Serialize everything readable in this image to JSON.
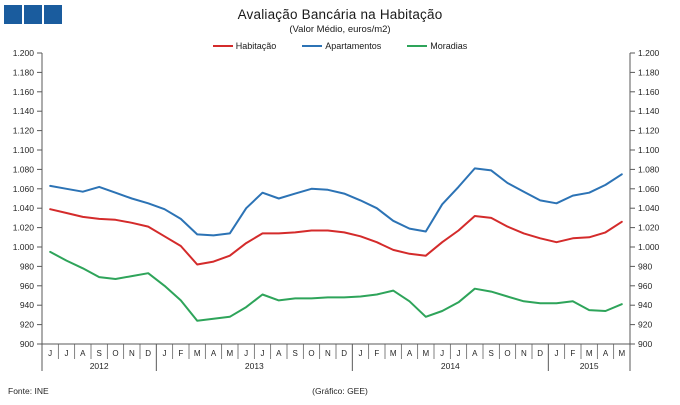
{
  "logo": {
    "square_color": "#1a5c9e",
    "square_count": 3
  },
  "title": "Avaliação Bancária na Habitação",
  "subtitle": "(Valor Médio, euros/m2)",
  "footer": {
    "source": "Fonte:  INE",
    "credit": "(Gráfico:  GEE)"
  },
  "chart_data": {
    "type": "line",
    "title": "Avaliação Bancária na Habitação",
    "subtitle": "(Valor Médio, euros/m2)",
    "ylim": [
      900,
      1200
    ],
    "ytick_step": 20,
    "ytick_labels": [
      "1.200",
      "1.180",
      "1.160",
      "1.140",
      "1.120",
      "1.100",
      "1.080",
      "1.060",
      "1.040",
      "1.020",
      "1.000",
      "980",
      "960",
      "940",
      "920",
      "900"
    ],
    "grid": false,
    "legend_position": "top-center",
    "dual_y_axis": true,
    "x_months": [
      "J",
      "J",
      "A",
      "S",
      "O",
      "N",
      "D",
      "J",
      "F",
      "M",
      "A",
      "M",
      "J",
      "J",
      "A",
      "S",
      "O",
      "N",
      "D",
      "J",
      "F",
      "M",
      "A",
      "M",
      "J",
      "J",
      "A",
      "S",
      "O",
      "N",
      "D",
      "J",
      "F",
      "M",
      "A",
      "M"
    ],
    "years": [
      {
        "label": "2012",
        "months": 7
      },
      {
        "label": "2013",
        "months": 12
      },
      {
        "label": "2014",
        "months": 12
      },
      {
        "label": "2015",
        "months": 5
      }
    ],
    "series": [
      {
        "name": "Habitação",
        "color": "#d42b2b",
        "values": [
          1039,
          1035,
          1031,
          1029,
          1028,
          1025,
          1021,
          1011,
          1001,
          982,
          985,
          991,
          1004,
          1014,
          1014,
          1015,
          1017,
          1017,
          1015,
          1011,
          1005,
          997,
          993,
          991,
          1005,
          1017,
          1032,
          1030,
          1021,
          1014,
          1009,
          1005,
          1009,
          1010,
          1015,
          1026
        ]
      },
      {
        "name": "Apartamentos",
        "color": "#2c73b5",
        "values": [
          1063,
          1060,
          1057,
          1062,
          1056,
          1050,
          1045,
          1039,
          1029,
          1013,
          1012,
          1014,
          1040,
          1056,
          1050,
          1055,
          1060,
          1059,
          1055,
          1048,
          1040,
          1027,
          1019,
          1016,
          1044,
          1062,
          1081,
          1079,
          1066,
          1057,
          1048,
          1045,
          1053,
          1056,
          1064,
          1075
        ]
      },
      {
        "name": "Moradias",
        "color": "#2ea45a",
        "values": [
          995,
          986,
          978,
          969,
          967,
          970,
          973,
          960,
          945,
          924,
          926,
          928,
          938,
          951,
          945,
          947,
          947,
          948,
          948,
          949,
          951,
          955,
          944,
          928,
          934,
          943,
          957,
          954,
          949,
          944,
          942,
          942,
          944,
          935,
          934,
          941
        ]
      }
    ]
  }
}
